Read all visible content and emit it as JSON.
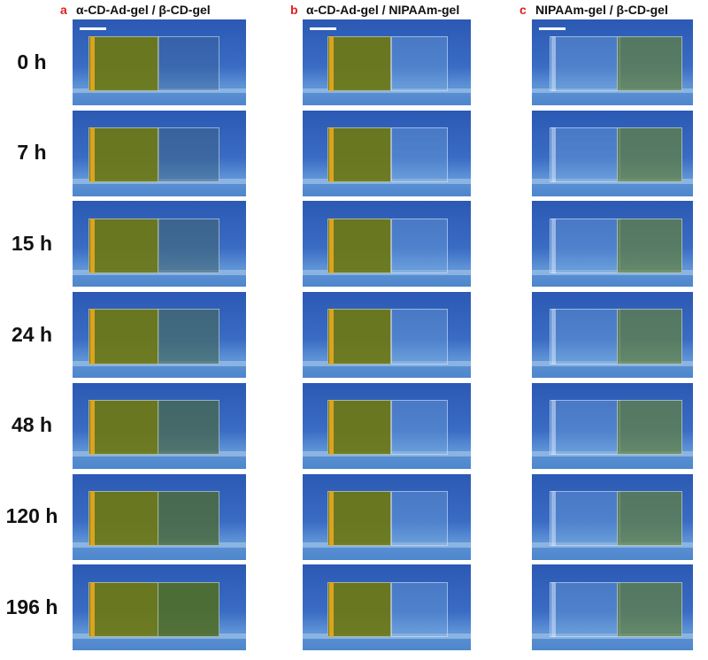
{
  "panels": [
    {
      "label": "a",
      "title": "α-CD-Ad-gel / β-CD-gel"
    },
    {
      "label": "b",
      "title": "α-CD-Ad-gel / NIPAAm-gel"
    },
    {
      "label": "c",
      "title": "NIPAAm-gel / β-CD-gel"
    }
  ],
  "time_labels": [
    "0 h",
    "7 h",
    "15 h",
    "24 h",
    "48 h",
    "120 h",
    "196 h"
  ]
}
